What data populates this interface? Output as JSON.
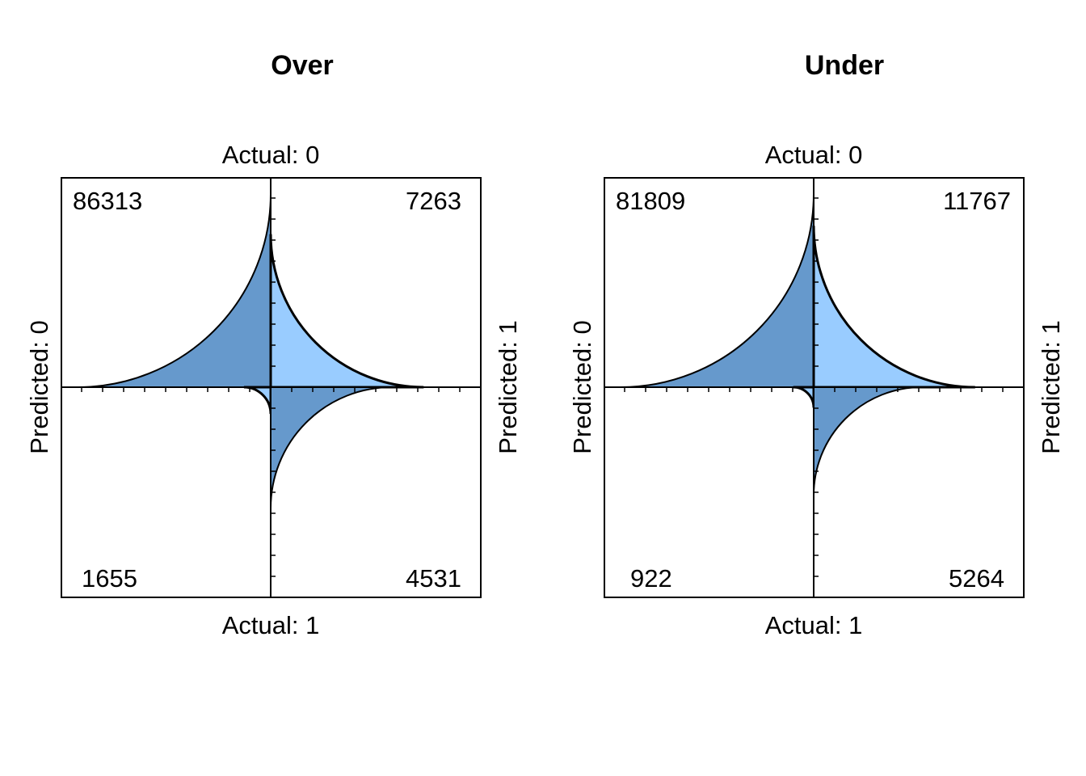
{
  "chart_data": [
    {
      "type": "fourfold",
      "title": "Over",
      "col_label_top": "Actual: 0",
      "col_label_bottom": "Actual: 1",
      "row_label_left": "Predicted: 0",
      "row_label_right": "Predicted: 1",
      "cells": {
        "top_left": 86313,
        "top_right": 7263,
        "bottom_left": 1655,
        "bottom_right": 4531
      },
      "colors": {
        "dark": "#6699cc",
        "light": "#99ccff"
      }
    },
    {
      "type": "fourfold",
      "title": "Under",
      "col_label_top": "Actual: 0",
      "col_label_bottom": "Actual: 1",
      "row_label_left": "Predicted: 0",
      "row_label_right": "Predicted: 1",
      "cells": {
        "top_left": 81809,
        "top_right": 11767,
        "bottom_left": 922,
        "bottom_right": 5264
      },
      "colors": {
        "dark": "#6699cc",
        "light": "#99ccff"
      }
    }
  ]
}
